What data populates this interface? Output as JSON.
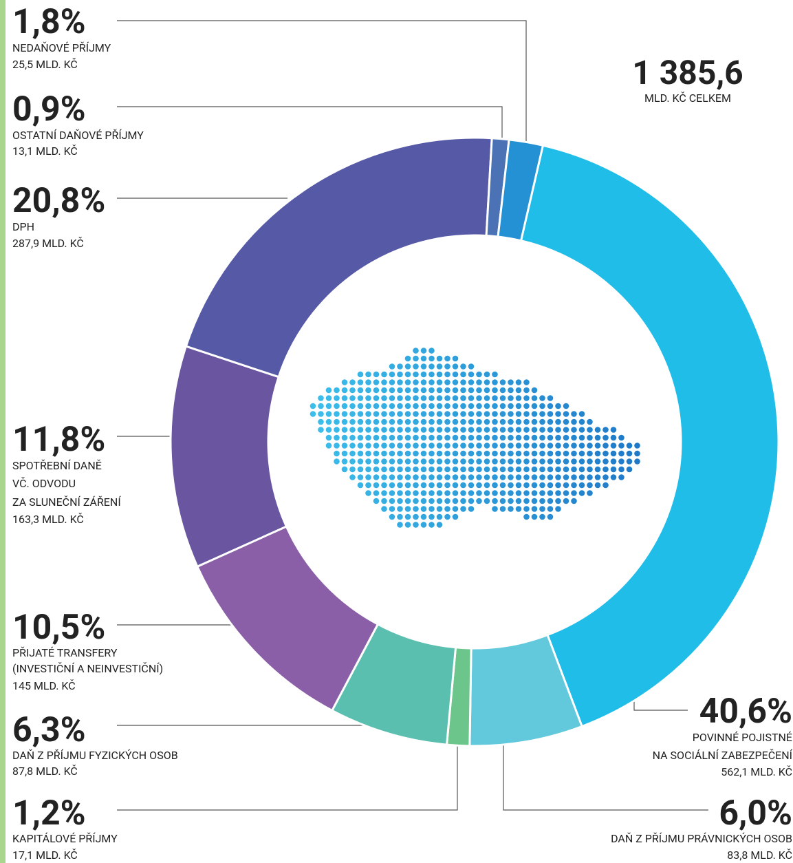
{
  "chart_data": {
    "type": "donut",
    "total_label": "1 385,6",
    "total_caption": "MLD. KČ CELKEM",
    "categories": [
      [
        "POVINNÉ POJISTNÉ",
        "NA SOCIÁLNÍ ZABEZPEČENÍ"
      ],
      [
        "DAŇ Z PŘÍJMU PRÁVNICKÝCH OSOB"
      ],
      [
        "KAPITÁLOVÉ PŘÍJMY"
      ],
      [
        "DAŇ Z PŘÍJMU FYZICKÝCH OSOB"
      ],
      [
        "PŘIJATÉ TRANSFERY",
        "(INVESTIČNÍ A NEINVESTIČNÍ)"
      ],
      [
        "SPOTŘEBNÍ DANĚ",
        "VČ. ODVODU",
        "ZA SLUNEČNÍ ZÁŘENÍ"
      ],
      [
        "DPH"
      ],
      [
        "OSTATNÍ DAŇOVÉ PŘÍJMY"
      ],
      [
        "NEDAŇOVÉ PŘÍJMY"
      ]
    ],
    "values": [
      40.6,
      6.0,
      1.2,
      6.3,
      10.5,
      11.8,
      20.8,
      0.9,
      1.8
    ],
    "value_labels": [
      "40,6%",
      "6,0%",
      "1,2%",
      "6,3%",
      "10,5%",
      "11,8%",
      "20,8%",
      "0,9%",
      "1,8%"
    ],
    "amount_labels": [
      "562,1 MLD. KČ",
      "83,8 MLD. KČ",
      "17,1 MLD. KČ",
      "87,8 MLD. KČ",
      "145 MLD. KČ",
      "163,3 MLD. KČ",
      "287,9 MLD. KČ",
      "13,1 MLD. KČ",
      "25,5 MLD. KČ"
    ],
    "colors": [
      "#1fbde8",
      "#62c8dc",
      "#6cc58a",
      "#5bbfaf",
      "#8b5fa8",
      "#6a55a0",
      "#5659a6",
      "#4a72b4",
      "#2491d4"
    ]
  }
}
